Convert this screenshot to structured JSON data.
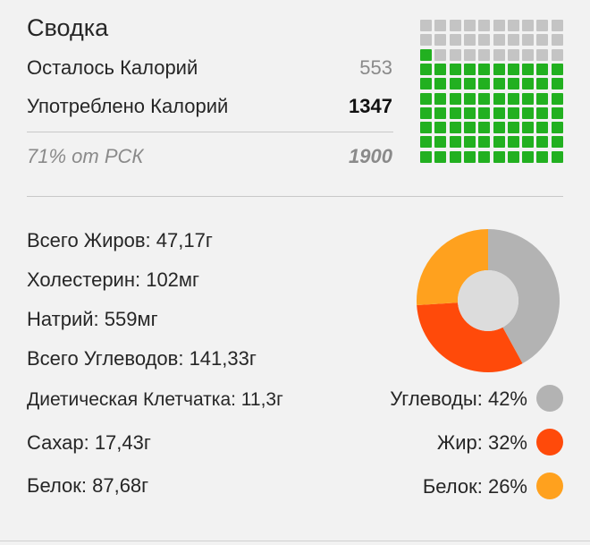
{
  "summary": {
    "title": "Сводка",
    "remaining_label": "Осталось Калорий",
    "remaining_value": "553",
    "consumed_label": "Употреблено Калорий",
    "consumed_value": "1347",
    "rsk_label": "71% от РСК",
    "rsk_value": "1900",
    "waffle": {
      "total_cells": 100,
      "filled_cells": 71,
      "filled_color": "#22b020",
      "empty_color": "#c4c4c4"
    }
  },
  "nutrients": [
    {
      "label": "Всего Жиров: 47,17г"
    },
    {
      "label": "Холестерин: 102мг"
    },
    {
      "label": "Натрий: 559мг"
    },
    {
      "label": "Всего Углеводов: 141,33г"
    },
    {
      "label": "Диетическая Клетчатка: 11,3г"
    },
    {
      "label": "Сахар: 17,43г"
    },
    {
      "label": "Белок: 87,68г"
    }
  ],
  "chart_data": {
    "type": "pie",
    "donut": true,
    "series": [
      {
        "name": "Углеводы",
        "value": 42,
        "label": "Углеводы: 42%",
        "color": "#b3b3b3"
      },
      {
        "name": "Жир",
        "value": 32,
        "label": "Жир: 32%",
        "color": "#ff4a0a"
      },
      {
        "name": "Белок",
        "value": 26,
        "label": "Белок: 26%",
        "color": "#ffa11e"
      }
    ],
    "legend": "right"
  }
}
